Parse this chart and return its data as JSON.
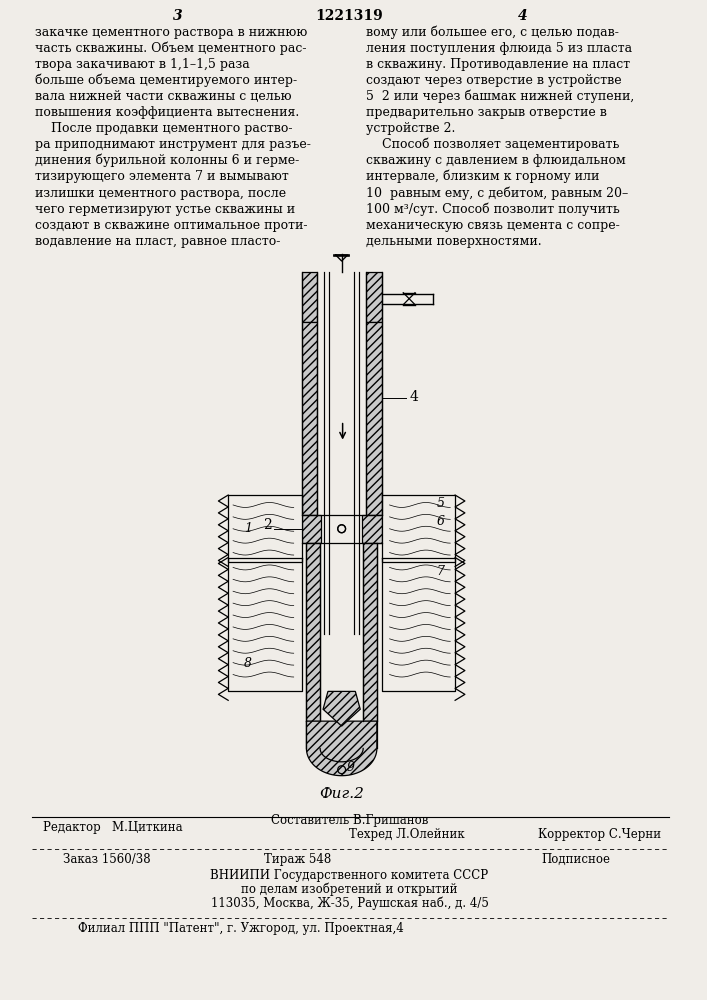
{
  "bg_color": "#f0ede8",
  "page_number_left": "3",
  "page_number_center": "1221319",
  "page_number_right": "4",
  "left_column_lines": [
    "закачке цементного раствора в нижнюю",
    "часть скважины. Объем цементного рас-",
    "твора закачивают в 1,1–1,5 раза",
    "больше объема цементируемого интер-",
    "вала нижней части скважины с целью",
    "повышения коэффициента вытеснения.",
    "    После продавки цементного раство-",
    "ра приподнимают инструмент для разъе-",
    "динения бурильной колонны 6 и герме-",
    "тизирующего элемента 7 и вымывают",
    "излишки цементного раствора, после",
    "чего герметизируют устье скважины и",
    "создают в скважине оптимальное проти-",
    "водавление на пласт, равное пласто-"
  ],
  "right_column_lines": [
    "вому или большее его, с целью подав-",
    "ления поступления флюида 5 из пласта",
    "в скважину. Противодавление на пласт",
    "создают через отверстие в устройстве",
    "5  2 или через башмак нижней ступени,",
    "предварительно закрыв отверстие в",
    "устройстве 2.",
    "    Способ позволяет зацементировать",
    "скважину с давлением в флюидальном",
    "интервале, близким к горному или",
    "10  равным ему, с дебитом, равным 20–",
    "100 м³/сут. Способ позволит получить",
    "механическую связь цемента с сопре-",
    "дельными поверхностями."
  ],
  "fig_caption": "Фиг.2",
  "footer_editor": "Редактор   М.Циткина",
  "footer_composer": "Составитель В.Гришанов",
  "footer_techred": "Техред Л.Олейник",
  "footer_corrector": "Корректор С.Черни",
  "footer_order": "Заказ 1560/38",
  "footer_tirazh": "Тираж 548",
  "footer_podpisnoe": "Подписное",
  "footer_vniipи": "ВНИИПИ Государственного комитета СССР",
  "footer_po_delam": "по делам изобретений и открытий",
  "footer_address": "113035, Москва, Ж-35, Раушская наб., д. 4/5",
  "footer_filial": "Филиал ППП \"Патент\", г. Ужгород, ул. Проектная,4"
}
